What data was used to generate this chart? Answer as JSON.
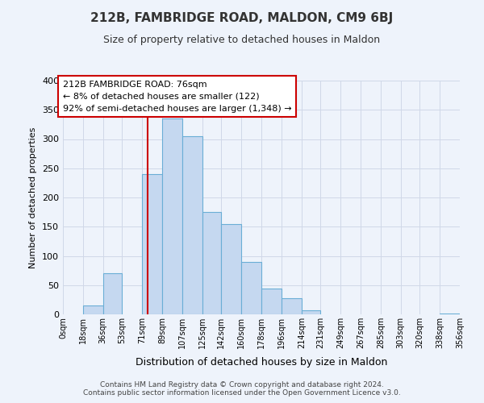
{
  "title": "212B, FAMBRIDGE ROAD, MALDON, CM9 6BJ",
  "subtitle": "Size of property relative to detached houses in Maldon",
  "xlabel": "Distribution of detached houses by size in Maldon",
  "ylabel": "Number of detached properties",
  "bar_edges": [
    0,
    18,
    36,
    53,
    71,
    89,
    107,
    125,
    142,
    160,
    178,
    196,
    214,
    231,
    249,
    267,
    285,
    303,
    320,
    338,
    356
  ],
  "bar_heights": [
    0,
    15,
    70,
    0,
    240,
    335,
    305,
    175,
    155,
    90,
    44,
    27,
    7,
    0,
    0,
    0,
    0,
    0,
    0,
    2
  ],
  "bar_color": "#c5d8f0",
  "bar_edgecolor": "#6aaed6",
  "tick_labels": [
    "0sqm",
    "18sqm",
    "36sqm",
    "53sqm",
    "71sqm",
    "89sqm",
    "107sqm",
    "125sqm",
    "142sqm",
    "160sqm",
    "178sqm",
    "196sqm",
    "214sqm",
    "231sqm",
    "249sqm",
    "267sqm",
    "285sqm",
    "303sqm",
    "320sqm",
    "338sqm",
    "356sqm"
  ],
  "vline_x": 76,
  "vline_color": "#cc0000",
  "ylim": [
    0,
    400
  ],
  "yticks": [
    0,
    50,
    100,
    150,
    200,
    250,
    300,
    350,
    400
  ],
  "annotation_title": "212B FAMBRIDGE ROAD: 76sqm",
  "annotation_line1": "← 8% of detached houses are smaller (122)",
  "annotation_line2": "92% of semi-detached houses are larger (1,348) →",
  "annotation_box_color": "#ffffff",
  "annotation_box_edgecolor": "#cc0000",
  "grid_color": "#d0d8e8",
  "background_color": "#eef3fb",
  "footer1": "Contains HM Land Registry data © Crown copyright and database right 2024.",
  "footer2": "Contains public sector information licensed under the Open Government Licence v3.0."
}
